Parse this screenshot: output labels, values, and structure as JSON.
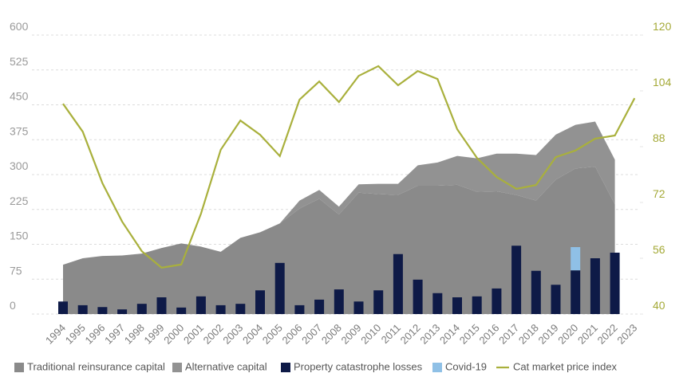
{
  "chart_data": {
    "type": "combo",
    "categories": [
      "1994",
      "1995",
      "1996",
      "1997",
      "1998",
      "1999",
      "2000",
      "2001",
      "2002",
      "2003",
      "2004",
      "2005",
      "2006",
      "2007",
      "2008",
      "2009",
      "2010",
      "2011",
      "2012",
      "2013",
      "2014",
      "2015",
      "2016",
      "2017",
      "2018",
      "2019",
      "2020",
      "2021",
      "2022",
      "2023"
    ],
    "series": [
      {
        "name": "Traditional reinsurance capital",
        "type": "area",
        "color": "#8a8a8a",
        "values": [
          106,
          120,
          125,
          126,
          130,
          142,
          152,
          145,
          134,
          164,
          176,
          195,
          227,
          248,
          214,
          261,
          258,
          256,
          276,
          276,
          278,
          263,
          264,
          256,
          244,
          289,
          313,
          317,
          236,
          null
        ]
      },
      {
        "name": "Alternative capital",
        "type": "area",
        "color": "#929292",
        "values": [
          0,
          0,
          0,
          0,
          0,
          0,
          0,
          0,
          0,
          0,
          0,
          0,
          17,
          19,
          17,
          18,
          22,
          24,
          44,
          50,
          62,
          72,
          81,
          89,
          98,
          97,
          94,
          97,
          96,
          null
        ]
      },
      {
        "name": "Property catastrophe losses",
        "type": "bar",
        "color": "#0e1a47",
        "values": [
          27,
          19,
          15,
          10,
          22,
          36,
          14,
          38,
          19,
          22,
          51,
          110,
          19,
          31,
          53,
          27,
          51,
          129,
          74,
          45,
          36,
          38,
          55,
          147,
          93,
          63,
          94,
          120,
          132,
          null
        ]
      },
      {
        "name": "Covid-19",
        "type": "bar",
        "color": "#8fc0e6",
        "values": [
          null,
          null,
          null,
          null,
          null,
          null,
          null,
          null,
          null,
          null,
          null,
          null,
          null,
          null,
          null,
          null,
          null,
          null,
          null,
          null,
          null,
          null,
          null,
          null,
          null,
          null,
          50,
          null,
          null,
          null
        ]
      },
      {
        "name": "Cat market price index",
        "type": "line",
        "axis": "y2",
        "color": "#a9b03c",
        "values": [
          100.3,
          92.3,
          77.5,
          66.5,
          58,
          53.3,
          54.2,
          68.8,
          87.1,
          95.5,
          91.4,
          85.3,
          101.5,
          106.7,
          100.8,
          108.3,
          111.1,
          105.6,
          109.7,
          107.4,
          93,
          84.8,
          79.3,
          75.9,
          77,
          85,
          86.9,
          90.3,
          91.2,
          101.9
        ]
      }
    ],
    "ylim": [
      0,
      600
    ],
    "yticks": [
      0,
      75,
      150,
      225,
      300,
      375,
      450,
      525,
      600
    ],
    "y2lim": [
      40,
      120
    ],
    "y2ticks": [
      40,
      56,
      72,
      88,
      104,
      120
    ],
    "grid": true
  }
}
